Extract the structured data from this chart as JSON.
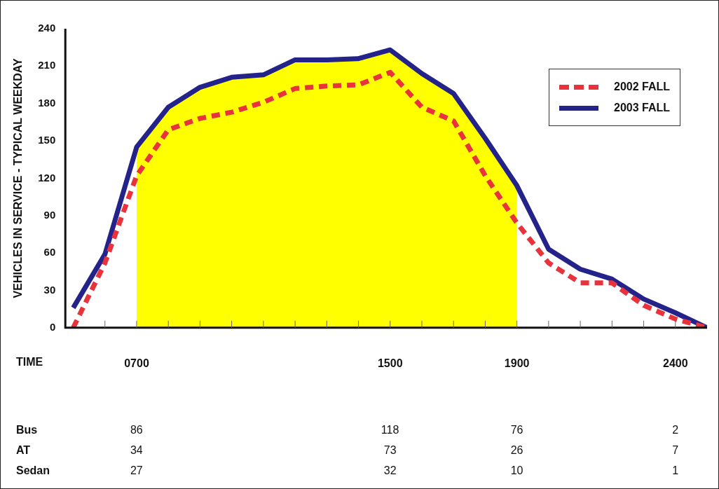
{
  "chart_data": {
    "type": "line",
    "xlabel": "TIME",
    "ylabel": "VEHICLES IN SERVICE - TYPICAL WEEKDAY",
    "x": [
      500,
      600,
      700,
      800,
      900,
      1000,
      1100,
      1200,
      1300,
      1400,
      1500,
      1600,
      1700,
      1800,
      1900,
      2000,
      2100,
      2200,
      2300,
      2400,
      2500
    ],
    "series": [
      {
        "name": "2002 FALL",
        "color": "#e8323c",
        "line_style": "dashed",
        "values": [
          0,
          52,
          122,
          159,
          168,
          173,
          181,
          192,
          194,
          195,
          205,
          177,
          166,
          122,
          84,
          52,
          36,
          36,
          18,
          7,
          0
        ]
      },
      {
        "name": "2003 FALL",
        "color": "#24238a",
        "line_style": "solid",
        "values": [
          16,
          59,
          145,
          177,
          193,
          201,
          203,
          215,
          215,
          216,
          223,
          204,
          188,
          152,
          114,
          63,
          47,
          39,
          23,
          12,
          0
        ]
      },
      {
        "type": "area",
        "color": "#ffff00",
        "x": [
          700,
          800,
          900,
          1000,
          1100,
          1200,
          1300,
          1400,
          1500,
          1600,
          1700,
          1800,
          1900
        ],
        "values": [
          145,
          177,
          193,
          201,
          203,
          215,
          215,
          216,
          223,
          204,
          188,
          152,
          114
        ]
      }
    ],
    "xlim": [
      475,
      2500
    ],
    "xticks": [
      {
        "value": 600,
        "label": null
      },
      {
        "value": 700,
        "label": "0700"
      },
      {
        "value": 800,
        "label": null
      },
      {
        "value": 900,
        "label": null
      },
      {
        "value": 1000,
        "label": null
      },
      {
        "value": 1100,
        "label": null
      },
      {
        "value": 1200,
        "label": null
      },
      {
        "value": 1300,
        "label": null
      },
      {
        "value": 1400,
        "label": null
      },
      1500,
      {
        "value": 1600,
        "label": null
      },
      {
        "value": 1700,
        "label": null
      },
      {
        "value": 1800,
        "label": null
      },
      1900,
      {
        "value": 2000,
        "label": null
      },
      {
        "value": 2100,
        "label": null
      },
      {
        "value": 2200,
        "label": null
      },
      {
        "value": 2300,
        "label": null
      },
      2400
    ],
    "ylim": [
      0,
      240
    ],
    "yticks": [
      0,
      30,
      60,
      90,
      120,
      150,
      180,
      210,
      240
    ],
    "grid": false,
    "legend": "top right",
    "marker": "none",
    "annotations": [
      "Bus",
      "86",
      "118",
      "76",
      "2",
      "AT",
      "34",
      "73",
      "26",
      "7",
      "Sedan",
      "27",
      "32",
      "10",
      "1"
    ]
  }
}
